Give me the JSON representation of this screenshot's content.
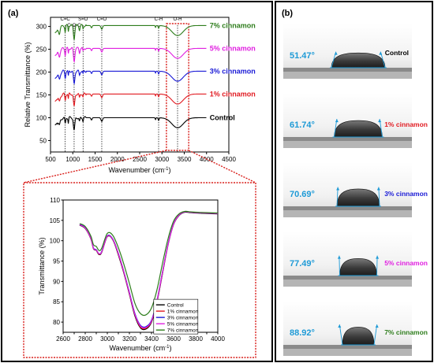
{
  "panel_a": {
    "label": "(a)"
  },
  "panel_b": {
    "label": "(b)"
  },
  "colors": {
    "control": "#000000",
    "c1": "#e11b22",
    "c3": "#1a1ad6",
    "c5": "#e020e0",
    "c7": "#2e7d1c",
    "angle": "#1e9ad6",
    "highlight": "#d9201c"
  },
  "chart_data": [
    {
      "type": "line",
      "xlabel": "Wavenumber (cm-1)",
      "ylabel": "Relative Transmittance (%)",
      "xlim": [
        500,
        4500
      ],
      "ylim": [
        25,
        320
      ],
      "xticks": [
        500,
        1000,
        1500,
        2000,
        2500,
        3000,
        3500,
        4000,
        4500
      ],
      "yticks": [
        50,
        100,
        150,
        200,
        250,
        300
      ],
      "peak_annotations": [
        {
          "label": "C=C",
          "x": 830
        },
        {
          "label": "C-O-C",
          "x": 1030
        },
        {
          "label": "S=O",
          "x": 1230
        },
        {
          "label": "C=O",
          "x": 1650
        },
        {
          "label": "C-H",
          "x": 2925
        },
        {
          "label": "O-H",
          "x": 3350
        }
      ],
      "series": [
        {
          "name": "Control",
          "offset": 100,
          "color_key": "control"
        },
        {
          "name": "1% cinnamon",
          "offset": 152,
          "color_key": "c1"
        },
        {
          "name": "3% cinnamon",
          "offset": 202,
          "color_key": "c3"
        },
        {
          "name": "5% cinnamon",
          "offset": 252,
          "color_key": "c5"
        },
        {
          "name": "7% cinnamon",
          "offset": 302,
          "color_key": "c7"
        }
      ]
    },
    {
      "type": "line",
      "xlabel": "Wavenumber (cm-1)",
      "ylabel": "Transmittance (%)",
      "xlim": [
        2600,
        4000
      ],
      "ylim": [
        77.5,
        110
      ],
      "xticks": [
        2600,
        2700,
        2800,
        2900,
        3000,
        3100,
        3200,
        3300,
        3400,
        3500,
        3600,
        3700,
        3800,
        3900,
        4000
      ],
      "yticks": [
        80,
        85,
        90,
        95,
        100,
        105,
        110
      ],
      "legend": "bottom-right",
      "series": [
        {
          "name": "Control",
          "color_key": "control",
          "min": 78.3,
          "x": [
            2750,
            2800,
            2850,
            2875,
            2900,
            2925,
            2950,
            3000,
            3050,
            3100,
            3150,
            3200,
            3250,
            3300,
            3350,
            3400,
            3450,
            3500,
            3550,
            3600,
            3650,
            3700,
            3750,
            3800,
            3900,
            4000
          ],
          "y": [
            103.8,
            103.0,
            100.5,
            98.0,
            97.6,
            96.6,
            97.2,
            101.0,
            100.2,
            96.5,
            92.0,
            86.8,
            81.5,
            78.6,
            78.3,
            80.0,
            85.0,
            92.0,
            99.0,
            104.0,
            106.2,
            107.0,
            106.9,
            106.8,
            106.7,
            106.6
          ]
        },
        {
          "name": "1% cinnamon",
          "color_key": "c1",
          "min": 78.5,
          "x": [
            2750,
            2800,
            2850,
            2875,
            2900,
            2925,
            2950,
            3000,
            3050,
            3100,
            3150,
            3200,
            3250,
            3300,
            3350,
            3400,
            3450,
            3500,
            3550,
            3600,
            3650,
            3700,
            3750,
            3800,
            3900,
            4000
          ],
          "y": [
            103.9,
            103.1,
            100.6,
            98.1,
            97.7,
            96.7,
            97.3,
            101.1,
            100.3,
            96.7,
            92.2,
            87.0,
            81.8,
            78.8,
            78.5,
            80.2,
            85.2,
            92.2,
            99.1,
            104.1,
            106.3,
            107.1,
            107.0,
            106.9,
            106.8,
            106.7
          ]
        },
        {
          "name": "3% cinnamon",
          "color_key": "c3",
          "min": 78.9,
          "x": [
            2750,
            2800,
            2850,
            2875,
            2900,
            2925,
            2950,
            3000,
            3050,
            3100,
            3150,
            3200,
            3250,
            3300,
            3350,
            3400,
            3450,
            3500,
            3550,
            3600,
            3650,
            3700,
            3750,
            3800,
            3900,
            4000
          ],
          "y": [
            104.0,
            103.2,
            100.7,
            98.2,
            97.8,
            96.8,
            97.4,
            101.2,
            100.4,
            96.9,
            92.4,
            87.3,
            82.1,
            79.2,
            78.9,
            80.5,
            85.4,
            92.4,
            99.2,
            104.2,
            106.3,
            107.1,
            107.0,
            106.9,
            106.8,
            106.7
          ]
        },
        {
          "name": "5% cinnamon",
          "color_key": "c5",
          "min": 78.7,
          "x": [
            2750,
            2800,
            2850,
            2875,
            2900,
            2925,
            2950,
            3000,
            3050,
            3100,
            3150,
            3200,
            3250,
            3300,
            3350,
            3400,
            3450,
            3500,
            3550,
            3600,
            3650,
            3700,
            3750,
            3800,
            3900,
            4000
          ],
          "y": [
            103.9,
            103.1,
            100.6,
            98.1,
            97.7,
            96.8,
            97.3,
            101.1,
            100.3,
            96.8,
            92.3,
            87.1,
            81.9,
            79.0,
            78.7,
            80.3,
            85.3,
            92.3,
            99.1,
            104.1,
            106.3,
            107.1,
            107.0,
            106.9,
            106.8,
            106.7
          ]
        },
        {
          "name": "7% cinnamon",
          "color_key": "c7",
          "min": 81.8,
          "x": [
            2750,
            2800,
            2850,
            2875,
            2900,
            2925,
            2950,
            3000,
            3050,
            3100,
            3150,
            3200,
            3250,
            3300,
            3350,
            3400,
            3450,
            3500,
            3550,
            3600,
            3650,
            3700,
            3750,
            3800,
            3900,
            4000
          ],
          "y": [
            104.2,
            103.5,
            101.2,
            99.0,
            98.6,
            97.6,
            98.2,
            101.8,
            101.3,
            98.3,
            94.2,
            89.5,
            84.6,
            82.1,
            81.8,
            83.5,
            88.0,
            94.5,
            100.5,
            104.8,
            106.6,
            107.2,
            107.1,
            107.0,
            106.9,
            106.8
          ]
        }
      ]
    }
  ],
  "contact_angles": [
    {
      "angle": "51.47°",
      "sample": "Control",
      "color_key": "control"
    },
    {
      "angle": "61.74°",
      "sample": "1% cinnamon",
      "color_key": "c1"
    },
    {
      "angle": "70.69°",
      "sample": "3% cinnamon",
      "color_key": "c3"
    },
    {
      "angle": "77.49°",
      "sample": "5% cinnamon",
      "color_key": "c5"
    },
    {
      "angle": "88.92°",
      "sample": "7% cinnamon",
      "color_key": "c7"
    }
  ]
}
